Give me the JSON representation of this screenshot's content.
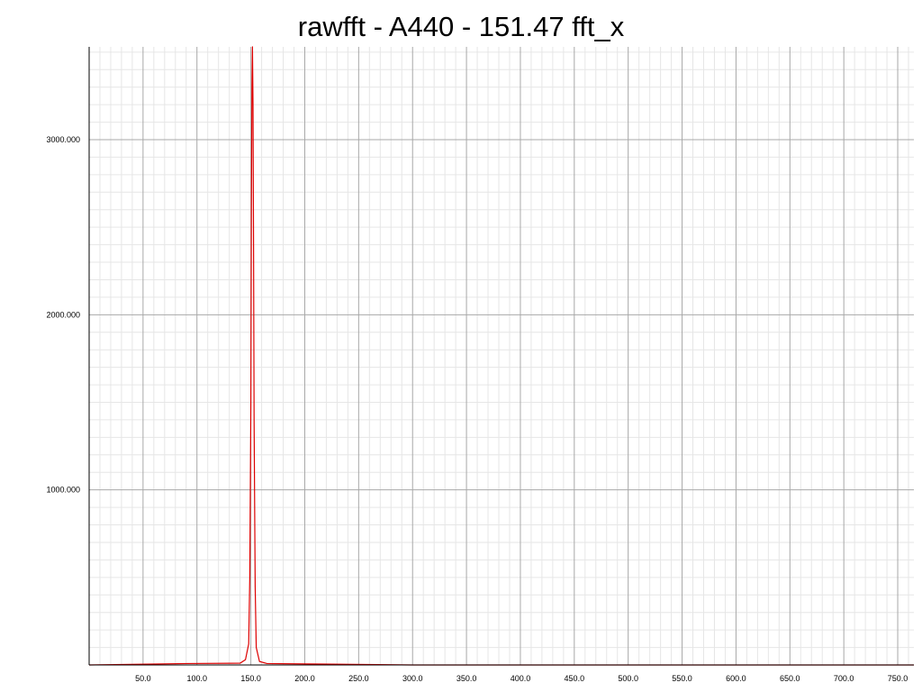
{
  "chart_data": {
    "type": "line",
    "title": "rawfft - A440 - 151.47 fft_x",
    "xlabel": "",
    "ylabel": "",
    "xlim": [
      0,
      765
    ],
    "ylim": [
      0,
      3530
    ],
    "x_ticks": [
      50,
      100,
      150,
      200,
      250,
      300,
      350,
      400,
      450,
      500,
      550,
      600,
      650,
      700,
      750
    ],
    "x_tick_labels": [
      "50.0",
      "100.0",
      "150.0",
      "200.0",
      "250.0",
      "300.0",
      "350.0",
      "400.0",
      "450.0",
      "500.0",
      "550.0",
      "600.0",
      "650.0",
      "700.0",
      "750.0"
    ],
    "y_ticks": [
      1000,
      2000,
      3000
    ],
    "y_tick_labels": [
      "1000.000",
      "2000.000",
      "3000.000"
    ],
    "grid": true,
    "legend": "none",
    "series": [
      {
        "color": "#dd0000",
        "x": [
          0,
          90,
          140,
          145,
          148,
          149,
          150,
          150.5,
          151,
          151.47,
          152,
          152.5,
          153,
          154,
          155,
          158,
          165,
          215,
          300,
          500,
          765
        ],
        "y": [
          0,
          8,
          10,
          30,
          120,
          500,
          1500,
          2600,
          3300,
          3530,
          3200,
          2400,
          1400,
          450,
          100,
          20,
          8,
          5,
          0,
          0,
          0
        ]
      }
    ]
  }
}
